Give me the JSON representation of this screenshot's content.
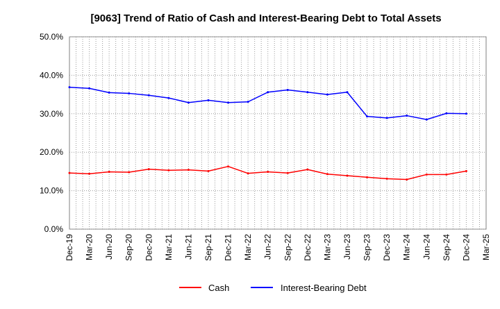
{
  "chart_data": {
    "type": "line",
    "title": "[9063]  Trend of Ratio of Cash and Interest-Bearing Debt to Total Assets",
    "xlabel": "",
    "ylabel": "",
    "x_tick_labels": [
      "Dec-19",
      "Mar-20",
      "Jun-20",
      "Sep-20",
      "Dec-20",
      "Mar-21",
      "Jun-21",
      "Sep-21",
      "Dec-21",
      "Mar-22",
      "Jun-22",
      "Sep-22",
      "Dec-22",
      "Mar-23",
      "Jun-23",
      "Sep-23",
      "Dec-23",
      "Mar-24",
      "Jun-24",
      "Sep-24",
      "Dec-24",
      "Mar-25"
    ],
    "y_tick_labels": [
      "0.0%",
      "10.0%",
      "20.0%",
      "30.0%",
      "40.0%",
      "50.0%"
    ],
    "ylim": [
      0,
      50
    ],
    "y_unit": "%",
    "grid": true,
    "legend_position": "bottom-center",
    "categories": [
      "Dec-19",
      "Mar-20",
      "Jun-20",
      "Sep-20",
      "Dec-20",
      "Mar-21",
      "Jun-21",
      "Sep-21",
      "Dec-21",
      "Mar-22",
      "Jun-22",
      "Sep-22",
      "Dec-22",
      "Mar-23",
      "Jun-23",
      "Sep-23",
      "Dec-23",
      "Mar-24",
      "Jun-24",
      "Sep-24",
      "Dec-24"
    ],
    "series": [
      {
        "name": "Cash",
        "color": "#ff0000",
        "values": [
          14.6,
          14.4,
          14.9,
          14.8,
          15.6,
          15.3,
          15.4,
          15.1,
          16.3,
          14.5,
          14.9,
          14.6,
          15.5,
          14.3,
          13.9,
          13.5,
          13.1,
          12.9,
          14.2,
          14.2,
          15.1
        ]
      },
      {
        "name": "Interest-Bearing Debt",
        "color": "#0000ff",
        "values": [
          36.9,
          36.6,
          35.5,
          35.3,
          34.8,
          34.1,
          32.9,
          33.5,
          32.9,
          33.1,
          35.6,
          36.2,
          35.6,
          35.0,
          35.6,
          29.3,
          28.9,
          29.5,
          28.5,
          30.1,
          30.0
        ]
      }
    ]
  }
}
